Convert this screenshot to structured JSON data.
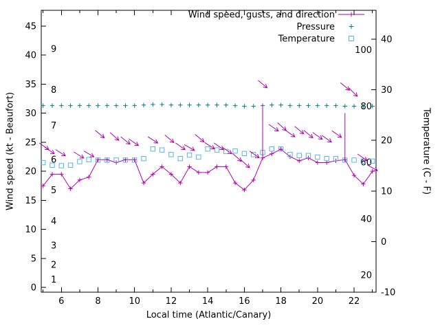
{
  "legend": {
    "entries": [
      {
        "label": "Wind speed, gusts, and direction",
        "marker": "line-plus",
        "color": "#b000b0"
      },
      {
        "label": "Pressure",
        "marker": "plus",
        "color": "#008080"
      },
      {
        "label": "Temperature",
        "marker": "square",
        "color": "#56b4e9"
      }
    ]
  },
  "chart_data": {
    "type": "line",
    "title": "",
    "xlabel": "Local time (Atlantic/Canary)",
    "ylabel_left": "Wind speed (kt - Beaufort)",
    "ylabel_right": "Temperature (C - F)",
    "xlim": [
      4.9,
      23.2
    ],
    "ylim_left": [
      -0.8,
      47.7
    ],
    "ylim_right": [
      -10,
      45.7
    ],
    "x_major_ticks": [
      6,
      8,
      10,
      12,
      14,
      16,
      18,
      20,
      22
    ],
    "x_minor_ticks": [
      5,
      7,
      9,
      11,
      13,
      15,
      17,
      19,
      21,
      23
    ],
    "y_left_ticks": [
      0,
      5,
      10,
      15,
      20,
      25,
      30,
      35,
      40,
      45
    ],
    "y_right_ticks": [
      -10,
      0,
      10,
      20,
      30,
      40
    ],
    "beaufort_scale": [
      {
        "label": "1",
        "kt": 1.3
      },
      {
        "label": "2",
        "kt": 3.9
      },
      {
        "label": "3",
        "kt": 7.2
      },
      {
        "label": "4",
        "kt": 11.4
      },
      {
        "label": "5",
        "kt": 16.7
      },
      {
        "label": "6",
        "kt": 22.0
      },
      {
        "label": "7",
        "kt": 27.8
      },
      {
        "label": "8",
        "kt": 34.0
      },
      {
        "label": "9",
        "kt": 41.0
      }
    ],
    "fahrenheit_scale": [
      {
        "label": "20",
        "c": -6.7
      },
      {
        "label": "40",
        "c": 4.4
      },
      {
        "label": "60",
        "c": 15.6
      },
      {
        "label": "80",
        "c": 26.7
      },
      {
        "label": "100",
        "c": 37.8
      }
    ],
    "times": [
      5,
      5.5,
      6,
      6.5,
      7,
      7.5,
      8,
      8.5,
      9,
      9.5,
      10,
      10.5,
      11,
      11.5,
      12,
      12.5,
      13,
      13.5,
      14,
      14.5,
      15,
      15.5,
      16,
      16.5,
      17,
      17.5,
      18,
      18.5,
      19,
      19.5,
      20,
      20.5,
      21,
      21.5,
      22,
      22.5,
      23
    ],
    "series": [
      {
        "name": "wind_speed",
        "axis": "left",
        "color": "#b000b0",
        "marker": "plus",
        "line": true,
        "values": [
          17.5,
          19.5,
          19.5,
          17,
          18.5,
          19,
          22,
          22,
          21.5,
          22,
          22,
          18,
          19.5,
          20.8,
          19.5,
          18,
          20.8,
          19.8,
          19.8,
          20.8,
          20.8,
          18,
          16.8,
          18.5,
          22.3,
          23,
          23.8,
          22.5,
          21.8,
          22.3,
          21.5,
          21.5,
          21.8,
          22,
          19.3,
          17.8,
          20
        ]
      },
      {
        "name": "pressure",
        "axis": "left",
        "color": "#008080",
        "marker": "plus",
        "line": false,
        "values": [
          31.3,
          31.3,
          31.3,
          31.3,
          31.3,
          31.3,
          31.3,
          31.3,
          31.3,
          31.3,
          31.3,
          31.4,
          31.5,
          31.5,
          31.4,
          31.4,
          31.4,
          31.4,
          31.4,
          31.4,
          31.4,
          31.3,
          31.2,
          31.2,
          31.3,
          31.4,
          31.4,
          31.3,
          31.3,
          31.3,
          31.3,
          31.3,
          31.3,
          31.2,
          31.2,
          31.2,
          31.2
        ]
      },
      {
        "name": "temperature",
        "axis": "right",
        "color": "#56b4e9",
        "marker": "square",
        "line": false,
        "values": [
          15.6,
          15.1,
          15,
          15.1,
          15.8,
          16.2,
          16.1,
          16.1,
          16.1,
          16.1,
          16.1,
          16.4,
          18.3,
          18.1,
          17.2,
          16.4,
          17.1,
          16.7,
          18.3,
          18.1,
          17.8,
          17.9,
          17.4,
          17.2,
          17.6,
          18.3,
          18.3,
          17.2,
          17,
          17,
          16.7,
          16.4,
          16.4,
          16.1,
          16.1,
          15.9,
          15.9
        ]
      }
    ],
    "gusts": [
      {
        "t": 17,
        "from": 22.3,
        "to": 31.5
      },
      {
        "t": 21.5,
        "from": 22,
        "to": 30
      }
    ],
    "wind_direction_arrows": [
      {
        "t": 5.05,
        "kt": 24.3,
        "angle_deg": 35
      },
      {
        "t": 5.35,
        "kt": 23.6,
        "angle_deg": 35
      },
      {
        "t": 5.95,
        "kt": 23.2,
        "angle_deg": 33
      },
      {
        "t": 6.95,
        "kt": 22.8,
        "angle_deg": 32
      },
      {
        "t": 7.5,
        "kt": 23.0,
        "angle_deg": 30
      },
      {
        "t": 8.1,
        "kt": 26.4,
        "angle_deg": 40
      },
      {
        "t": 8.9,
        "kt": 26.0,
        "angle_deg": 42
      },
      {
        "t": 9.5,
        "kt": 25.3,
        "angle_deg": 38
      },
      {
        "t": 9.95,
        "kt": 25.0,
        "angle_deg": 35
      },
      {
        "t": 11.0,
        "kt": 25.4,
        "angle_deg": 33
      },
      {
        "t": 11.9,
        "kt": 25.6,
        "angle_deg": 40
      },
      {
        "t": 12.5,
        "kt": 24.3,
        "angle_deg": 35
      },
      {
        "t": 13.0,
        "kt": 24.1,
        "angle_deg": 30
      },
      {
        "t": 13.55,
        "kt": 25.7,
        "angle_deg": 40
      },
      {
        "t": 14.1,
        "kt": 24.4,
        "angle_deg": 33
      },
      {
        "t": 14.6,
        "kt": 24.3,
        "angle_deg": 35
      },
      {
        "t": 15.05,
        "kt": 23.6,
        "angle_deg": 35
      },
      {
        "t": 15.6,
        "kt": 22.4,
        "angle_deg": 42
      },
      {
        "t": 16.05,
        "kt": 21.3,
        "angle_deg": 42
      },
      {
        "t": 16.55,
        "kt": 22.9,
        "angle_deg": 35
      },
      {
        "t": 17.0,
        "kt": 35.0,
        "angle_deg": 40
      },
      {
        "t": 17.6,
        "kt": 27.5,
        "angle_deg": 35
      },
      {
        "t": 18.05,
        "kt": 27.7,
        "angle_deg": 42
      },
      {
        "t": 18.5,
        "kt": 26.5,
        "angle_deg": 35
      },
      {
        "t": 19.0,
        "kt": 27.1,
        "angle_deg": 40
      },
      {
        "t": 19.5,
        "kt": 26.4,
        "angle_deg": 40
      },
      {
        "t": 20.0,
        "kt": 26.1,
        "angle_deg": 36
      },
      {
        "t": 20.5,
        "kt": 25.6,
        "angle_deg": 35
      },
      {
        "t": 21.05,
        "kt": 26.4,
        "angle_deg": 35
      },
      {
        "t": 21.5,
        "kt": 34.6,
        "angle_deg": 40
      },
      {
        "t": 21.95,
        "kt": 33.6,
        "angle_deg": 45
      },
      {
        "t": 22.45,
        "kt": 22.4,
        "angle_deg": 35
      },
      {
        "t": 23.0,
        "kt": 20.6,
        "angle_deg": 30
      }
    ]
  }
}
